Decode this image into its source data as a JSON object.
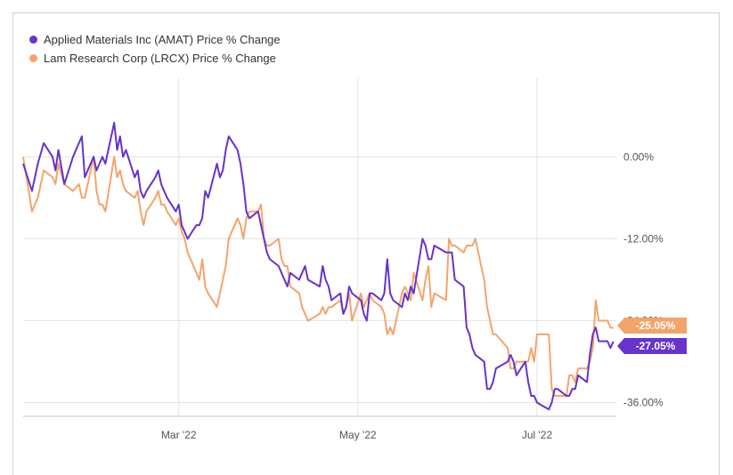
{
  "chart_data": {
    "type": "line",
    "title": "",
    "xlabel": "",
    "ylabel": "",
    "ylim": [
      -38,
      11.5
    ],
    "grid": true,
    "legend_placement": "top-left",
    "y_ticks": [
      {
        "value": 0,
        "label": "0.00%"
      },
      {
        "value": -12,
        "label": "-12.00%"
      },
      {
        "value": -24,
        "label": "-24.00%"
      },
      {
        "value": -36,
        "label": "-36.00%"
      }
    ],
    "x_ticks": [
      {
        "value": "2022-03-01",
        "label": "Mar '22"
      },
      {
        "value": "2022-05-01",
        "label": "May '22"
      },
      {
        "value": "2022-07-01",
        "label": "Jul '22"
      }
    ],
    "xlim": [
      "2022-01-07",
      "2022-07-28"
    ],
    "series": [
      {
        "name": "Applied Materials Inc (AMAT) Price % Change",
        "color": "#6633cc",
        "end_label": "-27.05%",
        "points": [
          [
            "2022-01-07",
            -1
          ],
          [
            "2022-01-10",
            -5
          ],
          [
            "2022-01-12",
            -1
          ],
          [
            "2022-01-14",
            2
          ],
          [
            "2022-01-17",
            0
          ],
          [
            "2022-01-18",
            -2
          ],
          [
            "2022-01-19",
            1
          ],
          [
            "2022-01-21",
            -4
          ],
          [
            "2022-01-24",
            0
          ],
          [
            "2022-01-26",
            2
          ],
          [
            "2022-01-27",
            3
          ],
          [
            "2022-01-28",
            -3
          ],
          [
            "2022-01-31",
            0
          ],
          [
            "2022-02-01",
            -2
          ],
          [
            "2022-02-02",
            -1
          ],
          [
            "2022-02-03",
            0
          ],
          [
            "2022-02-04",
            -1
          ],
          [
            "2022-02-07",
            5
          ],
          [
            "2022-02-08",
            1
          ],
          [
            "2022-02-09",
            3
          ],
          [
            "2022-02-10",
            0
          ],
          [
            "2022-02-11",
            1
          ],
          [
            "2022-02-14",
            -3
          ],
          [
            "2022-02-15",
            -2
          ],
          [
            "2022-02-16",
            -5
          ],
          [
            "2022-02-17",
            -6
          ],
          [
            "2022-02-18",
            -5
          ],
          [
            "2022-02-21",
            -3
          ],
          [
            "2022-02-22",
            -2
          ],
          [
            "2022-02-23",
            -4
          ],
          [
            "2022-02-24",
            -5
          ],
          [
            "2022-02-25",
            -6
          ],
          [
            "2022-02-28",
            -8
          ],
          [
            "2022-03-01",
            -7
          ],
          [
            "2022-03-02",
            -10
          ],
          [
            "2022-03-03",
            -11
          ],
          [
            "2022-03-04",
            -12
          ],
          [
            "2022-03-07",
            -10
          ],
          [
            "2022-03-08",
            -10
          ],
          [
            "2022-03-09",
            -9
          ],
          [
            "2022-03-10",
            -5
          ],
          [
            "2022-03-11",
            -6
          ],
          [
            "2022-03-14",
            -1
          ],
          [
            "2022-03-15",
            -3
          ],
          [
            "2022-03-16",
            -2
          ],
          [
            "2022-03-17",
            1
          ],
          [
            "2022-03-18",
            3
          ],
          [
            "2022-03-21",
            1
          ],
          [
            "2022-03-22",
            -1
          ],
          [
            "2022-03-23",
            -4
          ],
          [
            "2022-03-24",
            -8
          ],
          [
            "2022-03-25",
            -9
          ],
          [
            "2022-03-28",
            -8
          ],
          [
            "2022-03-29",
            -10
          ],
          [
            "2022-03-30",
            -12
          ],
          [
            "2022-03-31",
            -14
          ],
          [
            "2022-04-01",
            -15
          ],
          [
            "2022-04-04",
            -16
          ],
          [
            "2022-04-05",
            -17
          ],
          [
            "2022-04-06",
            -18
          ],
          [
            "2022-04-07",
            -19
          ],
          [
            "2022-04-08",
            -17
          ],
          [
            "2022-04-11",
            -18
          ],
          [
            "2022-04-12",
            -17
          ],
          [
            "2022-04-13",
            -16
          ],
          [
            "2022-04-14",
            -18
          ],
          [
            "2022-04-18",
            -19
          ],
          [
            "2022-04-19",
            -16
          ],
          [
            "2022-04-20",
            -18
          ],
          [
            "2022-04-21",
            -19
          ],
          [
            "2022-04-22",
            -21
          ],
          [
            "2022-04-25",
            -20
          ],
          [
            "2022-04-26",
            -23
          ],
          [
            "2022-04-27",
            -22
          ],
          [
            "2022-04-28",
            -19
          ],
          [
            "2022-04-29",
            -20
          ],
          [
            "2022-05-02",
            -21
          ],
          [
            "2022-05-03",
            -23
          ],
          [
            "2022-05-04",
            -24
          ],
          [
            "2022-05-05",
            -20
          ],
          [
            "2022-05-06",
            -20
          ],
          [
            "2022-05-09",
            -21
          ],
          [
            "2022-05-10",
            -20
          ],
          [
            "2022-05-11",
            -15
          ],
          [
            "2022-05-12",
            -20
          ],
          [
            "2022-05-13",
            -21
          ],
          [
            "2022-05-16",
            -22
          ],
          [
            "2022-05-17",
            -20
          ],
          [
            "2022-05-18",
            -21
          ],
          [
            "2022-05-19",
            -19
          ],
          [
            "2022-05-20",
            -20
          ],
          [
            "2022-05-23",
            -12
          ],
          [
            "2022-05-24",
            -13
          ],
          [
            "2022-05-25",
            -15
          ],
          [
            "2022-05-26",
            -15
          ],
          [
            "2022-05-27",
            -13
          ],
          [
            "2022-05-31",
            -14
          ],
          [
            "2022-06-01",
            -14
          ],
          [
            "2022-06-02",
            -14
          ],
          [
            "2022-06-03",
            -18
          ],
          [
            "2022-06-06",
            -19
          ],
          [
            "2022-06-07",
            -25
          ],
          [
            "2022-06-08",
            -26
          ],
          [
            "2022-06-09",
            -28
          ],
          [
            "2022-06-10",
            -29
          ],
          [
            "2022-06-13",
            -30
          ],
          [
            "2022-06-14",
            -34
          ],
          [
            "2022-06-15",
            -34
          ],
          [
            "2022-06-16",
            -33
          ],
          [
            "2022-06-17",
            -31
          ],
          [
            "2022-06-21",
            -30
          ],
          [
            "2022-06-22",
            -29
          ],
          [
            "2022-06-23",
            -30
          ],
          [
            "2022-06-24",
            -32
          ],
          [
            "2022-06-27",
            -30
          ],
          [
            "2022-06-28",
            -33
          ],
          [
            "2022-06-29",
            -35
          ],
          [
            "2022-06-30",
            -35
          ],
          [
            "2022-07-01",
            -36
          ],
          [
            "2022-07-05",
            -37
          ],
          [
            "2022-07-06",
            -36
          ],
          [
            "2022-07-07",
            -34
          ],
          [
            "2022-07-08",
            -34
          ],
          [
            "2022-07-11",
            -35
          ],
          [
            "2022-07-12",
            -35
          ],
          [
            "2022-07-13",
            -34
          ],
          [
            "2022-07-14",
            -34
          ],
          [
            "2022-07-15",
            -32
          ],
          [
            "2022-07-18",
            -33
          ],
          [
            "2022-07-19",
            -29
          ],
          [
            "2022-07-20",
            -26
          ],
          [
            "2022-07-21",
            -25
          ],
          [
            "2022-07-22",
            -27
          ],
          [
            "2022-07-25",
            -27
          ],
          [
            "2022-07-26",
            -28
          ],
          [
            "2022-07-27",
            -27.05
          ]
        ]
      },
      {
        "name": "Lam Research Corp (LRCX) Price % Change",
        "color": "#f4a46a",
        "end_label": "-25.05%",
        "points": [
          [
            "2022-01-07",
            0
          ],
          [
            "2022-01-10",
            -8
          ],
          [
            "2022-01-12",
            -6
          ],
          [
            "2022-01-14",
            -2
          ],
          [
            "2022-01-17",
            -3
          ],
          [
            "2022-01-18",
            -4
          ],
          [
            "2022-01-19",
            -1
          ],
          [
            "2022-01-21",
            -4
          ],
          [
            "2022-01-24",
            -5
          ],
          [
            "2022-01-26",
            -4
          ],
          [
            "2022-01-27",
            -6
          ],
          [
            "2022-01-28",
            -6
          ],
          [
            "2022-01-31",
            0
          ],
          [
            "2022-02-01",
            -5
          ],
          [
            "2022-02-02",
            -7
          ],
          [
            "2022-02-03",
            -7
          ],
          [
            "2022-02-04",
            -8
          ],
          [
            "2022-02-07",
            0
          ],
          [
            "2022-02-08",
            -3
          ],
          [
            "2022-02-09",
            -2
          ],
          [
            "2022-02-10",
            -4
          ],
          [
            "2022-02-11",
            -5
          ],
          [
            "2022-02-14",
            -6
          ],
          [
            "2022-02-15",
            -5
          ],
          [
            "2022-02-16",
            -8
          ],
          [
            "2022-02-17",
            -10
          ],
          [
            "2022-02-18",
            -8
          ],
          [
            "2022-02-21",
            -6
          ],
          [
            "2022-02-22",
            -5
          ],
          [
            "2022-02-23",
            -7
          ],
          [
            "2022-02-24",
            -7
          ],
          [
            "2022-02-25",
            -8
          ],
          [
            "2022-02-28",
            -10
          ],
          [
            "2022-03-01",
            -9
          ],
          [
            "2022-03-02",
            -11
          ],
          [
            "2022-03-03",
            -12
          ],
          [
            "2022-03-04",
            -14
          ],
          [
            "2022-03-07",
            -17
          ],
          [
            "2022-03-08",
            -18
          ],
          [
            "2022-03-09",
            -15
          ],
          [
            "2022-03-10",
            -19
          ],
          [
            "2022-03-11",
            -20
          ],
          [
            "2022-03-14",
            -22
          ],
          [
            "2022-03-15",
            -20
          ],
          [
            "2022-03-16",
            -18
          ],
          [
            "2022-03-17",
            -16
          ],
          [
            "2022-03-18",
            -12
          ],
          [
            "2022-03-21",
            -9
          ],
          [
            "2022-03-22",
            -10
          ],
          [
            "2022-03-23",
            -12
          ],
          [
            "2022-03-24",
            -9
          ],
          [
            "2022-03-25",
            -8
          ],
          [
            "2022-03-28",
            -8
          ],
          [
            "2022-03-29",
            -7
          ],
          [
            "2022-03-30",
            -12
          ],
          [
            "2022-03-31",
            -13
          ],
          [
            "2022-04-01",
            -13
          ],
          [
            "2022-04-04",
            -12
          ],
          [
            "2022-04-05",
            -15
          ],
          [
            "2022-04-06",
            -16
          ],
          [
            "2022-04-07",
            -16
          ],
          [
            "2022-04-08",
            -19
          ],
          [
            "2022-04-11",
            -20
          ],
          [
            "2022-04-12",
            -22
          ],
          [
            "2022-04-13",
            -23
          ],
          [
            "2022-04-14",
            -24
          ],
          [
            "2022-04-18",
            -23
          ],
          [
            "2022-04-19",
            -22
          ],
          [
            "2022-04-20",
            -23
          ],
          [
            "2022-04-21",
            -22
          ],
          [
            "2022-04-22",
            -22
          ],
          [
            "2022-04-25",
            -21
          ],
          [
            "2022-04-26",
            -23
          ],
          [
            "2022-04-27",
            -22
          ],
          [
            "2022-04-28",
            -20
          ],
          [
            "2022-04-29",
            -24
          ],
          [
            "2022-05-02",
            -20
          ],
          [
            "2022-05-03",
            -22
          ],
          [
            "2022-05-04",
            -21
          ],
          [
            "2022-05-05",
            -20
          ],
          [
            "2022-05-06",
            -21
          ],
          [
            "2022-05-09",
            -22
          ],
          [
            "2022-05-10",
            -23
          ],
          [
            "2022-05-11",
            -26
          ],
          [
            "2022-05-12",
            -25
          ],
          [
            "2022-05-13",
            -26
          ],
          [
            "2022-05-16",
            -20
          ],
          [
            "2022-05-17",
            -19
          ],
          [
            "2022-05-18",
            -20
          ],
          [
            "2022-05-19",
            -21
          ],
          [
            "2022-05-20",
            -17
          ],
          [
            "2022-05-23",
            -21
          ],
          [
            "2022-05-24",
            -18
          ],
          [
            "2022-05-25",
            -16
          ],
          [
            "2022-05-26",
            -22
          ],
          [
            "2022-05-27",
            -20
          ],
          [
            "2022-05-31",
            -21
          ],
          [
            "2022-06-01",
            -12
          ],
          [
            "2022-06-02",
            -13
          ],
          [
            "2022-06-03",
            -13
          ],
          [
            "2022-06-06",
            -14
          ],
          [
            "2022-06-07",
            -13
          ],
          [
            "2022-06-08",
            -13
          ],
          [
            "2022-06-09",
            -13
          ],
          [
            "2022-06-10",
            -12
          ],
          [
            "2022-06-13",
            -18
          ],
          [
            "2022-06-14",
            -22
          ],
          [
            "2022-06-15",
            -24
          ],
          [
            "2022-06-16",
            -26
          ],
          [
            "2022-06-17",
            -26
          ],
          [
            "2022-06-21",
            -28
          ],
          [
            "2022-06-22",
            -31
          ],
          [
            "2022-06-23",
            -31
          ],
          [
            "2022-06-24",
            -30
          ],
          [
            "2022-06-27",
            -30
          ],
          [
            "2022-06-28",
            -30
          ],
          [
            "2022-06-29",
            -28
          ],
          [
            "2022-06-30",
            -30
          ],
          [
            "2022-07-01",
            -26
          ],
          [
            "2022-07-05",
            -26
          ],
          [
            "2022-07-06",
            -34
          ],
          [
            "2022-07-07",
            -35
          ],
          [
            "2022-07-08",
            -35
          ],
          [
            "2022-07-11",
            -35
          ],
          [
            "2022-07-12",
            -32
          ],
          [
            "2022-07-13",
            -32
          ],
          [
            "2022-07-14",
            -33
          ],
          [
            "2022-07-15",
            -31
          ],
          [
            "2022-07-18",
            -31
          ],
          [
            "2022-07-19",
            -30
          ],
          [
            "2022-07-20",
            -28
          ],
          [
            "2022-07-21",
            -21
          ],
          [
            "2022-07-22",
            -24
          ],
          [
            "2022-07-25",
            -24
          ],
          [
            "2022-07-26",
            -25
          ],
          [
            "2022-07-27",
            -25.05
          ]
        ]
      }
    ]
  }
}
